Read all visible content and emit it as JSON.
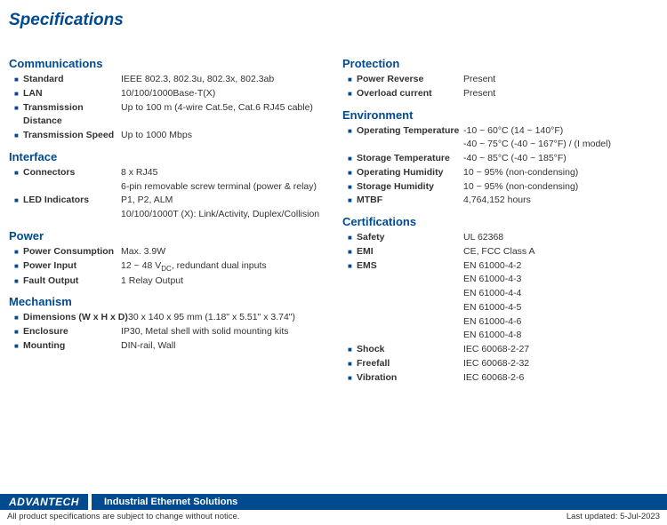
{
  "title": "Specifications",
  "colors": {
    "accent": "#004a8f",
    "text": "#333333",
    "background": "#ffffff"
  },
  "left_column": [
    {
      "title": "Communications",
      "rows": [
        {
          "label": "Standard",
          "value": [
            "IEEE 802.3, 802.3u, 802.3x, 802.3ab"
          ]
        },
        {
          "label": "LAN",
          "value": [
            "10/100/1000Base-T(X)"
          ]
        },
        {
          "label": "Transmission Distance",
          "value": [
            "Up to 100 m (4-wire Cat.5e, Cat.6 RJ45 cable)"
          ]
        },
        {
          "label": "Transmission Speed",
          "value": [
            "Up to 1000 Mbps"
          ]
        }
      ]
    },
    {
      "title": "Interface",
      "rows": [
        {
          "label": "Connectors",
          "value": [
            "8 x RJ45",
            "6-pin removable screw terminal (power & relay)"
          ]
        },
        {
          "label": "LED Indicators",
          "value": [
            "P1, P2, ALM",
            "10/100/1000T (X): Link/Activity, Duplex/Collision"
          ]
        }
      ]
    },
    {
      "title": "Power",
      "rows": [
        {
          "label": "Power Consumption",
          "value": [
            "Max. 3.9W"
          ]
        },
        {
          "label": "Power Input",
          "value": [
            "12 ~ 48 V_DC, redundant dual inputs"
          ],
          "has_sub": true
        },
        {
          "label": "Fault Output",
          "value": [
            "1 Relay Output"
          ]
        }
      ]
    },
    {
      "title": "Mechanism",
      "rows": [
        {
          "label": "Dimensions (W x H x D)",
          "value": [
            "30 x 140 x 95 mm (1.18\" x 5.51\" x 3.74\")"
          ],
          "wide_label": true
        },
        {
          "label": "Enclosure",
          "value": [
            "IP30, Metal shell with solid mounting kits"
          ]
        },
        {
          "label": "Mounting",
          "value": [
            "DIN-rail, Wall"
          ]
        }
      ]
    }
  ],
  "right_column": [
    {
      "title": "Protection",
      "rows": [
        {
          "label": "Power Reverse",
          "value": [
            "Present"
          ]
        },
        {
          "label": "Overload current",
          "value": [
            "Present"
          ]
        }
      ]
    },
    {
      "title": "Environment",
      "rows": [
        {
          "label": "Operating Temperature",
          "value": [
            "-10 ~ 60°C (14 ~ 140°F)",
            "-40 ~ 75°C (-40 ~ 167°F) / (I model)"
          ]
        },
        {
          "label": "Storage Temperature",
          "value": [
            "-40 ~ 85°C (-40 ~ 185°F)"
          ]
        },
        {
          "label": "Operating Humidity",
          "value": [
            "10 ~ 95% (non-condensing)"
          ]
        },
        {
          "label": "Storage Humidity",
          "value": [
            "10 ~ 95% (non-condensing)"
          ]
        },
        {
          "label": "MTBF",
          "value": [
            "4,764,152 hours"
          ]
        }
      ]
    },
    {
      "title": "Certifications",
      "rows": [
        {
          "label": "Safety",
          "value": [
            "UL 62368"
          ]
        },
        {
          "label": "EMI",
          "value": [
            "CE, FCC Class A"
          ]
        },
        {
          "label": "EMS",
          "value": [
            "EN 61000-4-2",
            "EN 61000-4-3",
            "EN 61000-4-4",
            "EN 61000-4-5",
            "EN 61000-4-6",
            "EN 61000-4-8"
          ]
        },
        {
          "label": "Shock",
          "value": [
            "IEC 60068-2-27"
          ]
        },
        {
          "label": "Freefall",
          "value": [
            "IEC 60068-2-32"
          ]
        },
        {
          "label": "Vibration",
          "value": [
            "IEC 60068-2-6"
          ]
        }
      ]
    }
  ],
  "footer": {
    "brand": "ADVANTECH",
    "strip": "Industrial Ethernet Solutions",
    "disclaimer": "All product specifications are subject to change without notice.",
    "updated": "Last updated: 5-Jul-2023"
  }
}
